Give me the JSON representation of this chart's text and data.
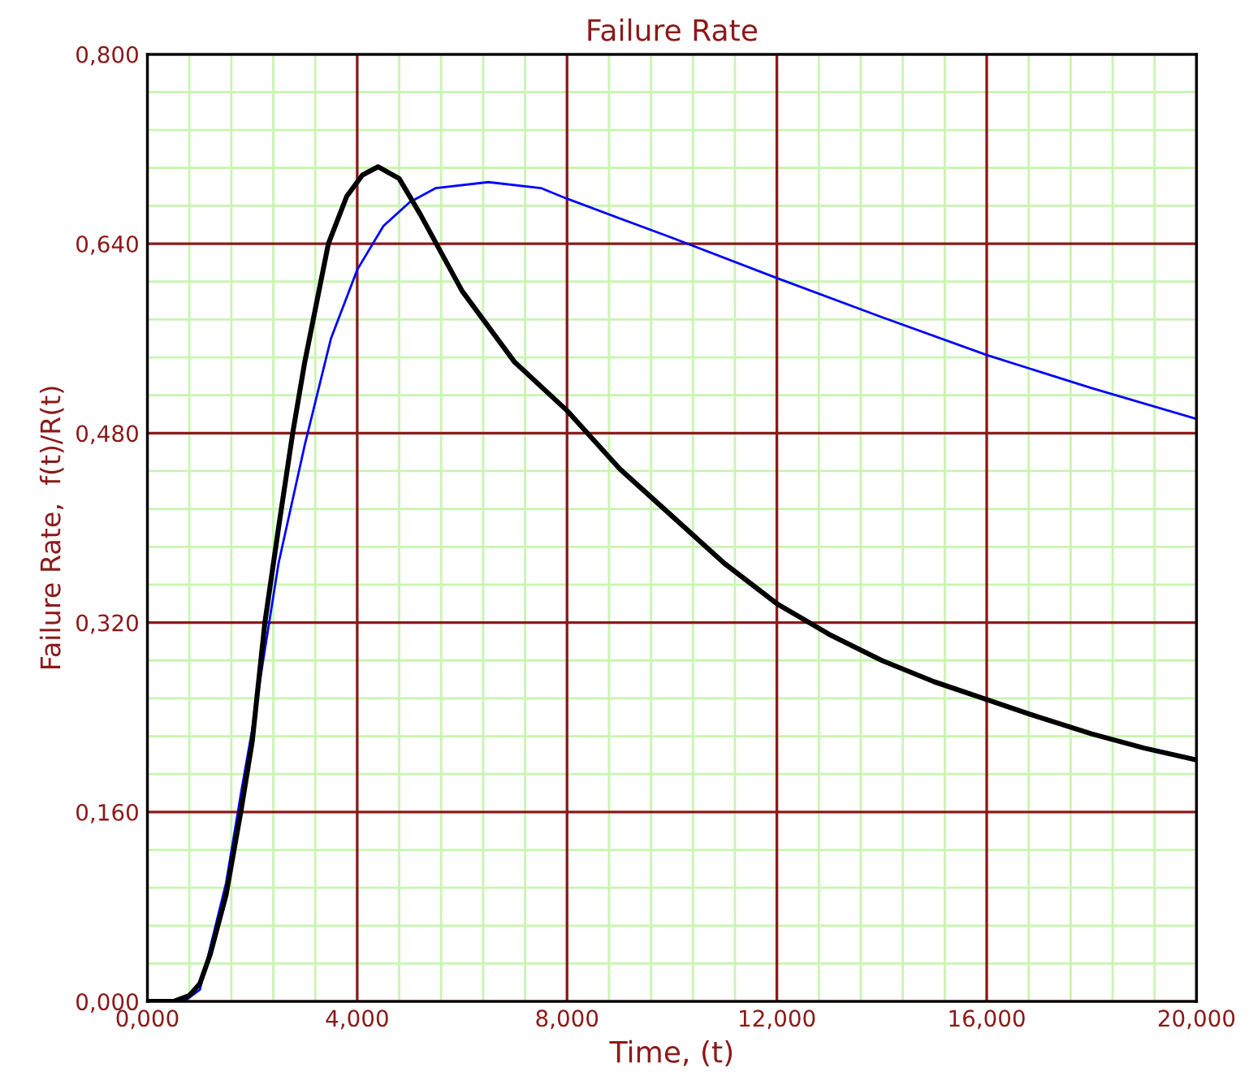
{
  "chart_data": {
    "type": "line",
    "title": "Failure Rate",
    "xlabel": "Time, (t)",
    "ylabel": "Failure Rate,  f(t)/R(t)",
    "xlim": [
      0,
      20
    ],
    "ylim": [
      0,
      0.8
    ],
    "xticks": [
      {
        "value": 0,
        "label": "0,000"
      },
      {
        "value": 0.8,
        "label": null
      },
      {
        "value": 1.6,
        "label": null
      },
      {
        "value": 2.4,
        "label": null
      },
      {
        "value": 3.2,
        "label": null
      },
      {
        "value": 4,
        "label": "4,000"
      },
      {
        "value": 4.8,
        "label": null
      },
      {
        "value": 5.6,
        "label": null
      },
      {
        "value": 6.4,
        "label": null
      },
      {
        "value": 7.2,
        "label": null
      },
      {
        "value": 8,
        "label": "8,000"
      },
      {
        "value": 8.8,
        "label": null
      },
      {
        "value": 9.6,
        "label": null
      },
      {
        "value": 10.4,
        "label": null
      },
      {
        "value": 11.2,
        "label": null
      },
      {
        "value": 12,
        "label": "12,000"
      },
      {
        "value": 12.8,
        "label": null
      },
      {
        "value": 13.6,
        "label": null
      },
      {
        "value": 14.4,
        "label": null
      },
      {
        "value": 15.2,
        "label": null
      },
      {
        "value": 16,
        "label": "16,000"
      },
      {
        "value": 16.8,
        "label": null
      },
      {
        "value": 17.6,
        "label": null
      },
      {
        "value": 18.4,
        "label": null
      },
      {
        "value": 19.2,
        "label": null
      },
      {
        "value": 20,
        "label": "20,000"
      }
    ],
    "yticks": [
      {
        "value": 0,
        "label": "0,000"
      },
      {
        "value": 0.032,
        "label": null
      },
      {
        "value": 0.064,
        "label": null
      },
      {
        "value": 0.096,
        "label": null
      },
      {
        "value": 0.128,
        "label": null
      },
      {
        "value": 0.16,
        "label": "0,160"
      },
      {
        "value": 0.192,
        "label": null
      },
      {
        "value": 0.224,
        "label": null
      },
      {
        "value": 0.256,
        "label": null
      },
      {
        "value": 0.288,
        "label": null
      },
      {
        "value": 0.32,
        "label": "0,320"
      },
      {
        "value": 0.352,
        "label": null
      },
      {
        "value": 0.384,
        "label": null
      },
      {
        "value": 0.416,
        "label": null
      },
      {
        "value": 0.448,
        "label": null
      },
      {
        "value": 0.48,
        "label": "0,480"
      },
      {
        "value": 0.512,
        "label": null
      },
      {
        "value": 0.544,
        "label": null
      },
      {
        "value": 0.576,
        "label": null
      },
      {
        "value": 0.608,
        "label": null
      },
      {
        "value": 0.64,
        "label": "0,640"
      },
      {
        "value": 0.672,
        "label": null
      },
      {
        "value": 0.704,
        "label": null
      },
      {
        "value": 0.736,
        "label": null
      },
      {
        "value": 0.768,
        "label": null
      },
      {
        "value": 0.8,
        "label": "0,800"
      }
    ],
    "grid": true,
    "marker": "none",
    "line_style": "solid",
    "series": [
      {
        "color": "#0000ff",
        "x": [
          0,
          0.7,
          1,
          1.5,
          1.8,
          2,
          2.5,
          3,
          3.5,
          4,
          4.5,
          5,
          5.5,
          6.5,
          7.5,
          8,
          10,
          12,
          14,
          16,
          18,
          20
        ],
        "values": [
          0,
          0,
          0.01,
          0.1,
          0.18,
          0.23,
          0.37,
          0.47,
          0.56,
          0.618,
          0.655,
          0.675,
          0.687,
          0.692,
          0.687,
          0.678,
          0.645,
          0.611,
          0.578,
          0.546,
          0.518,
          0.492
        ]
      },
      {
        "color": "#000000",
        "x": [
          0,
          0.5,
          0.8,
          1,
          1.2,
          1.5,
          1.78,
          2,
          2.24,
          2.5,
          2.77,
          3,
          3.45,
          3.8,
          4.1,
          4.4,
          4.8,
          5.2,
          6,
          7,
          8,
          9,
          10,
          11,
          12,
          13,
          14,
          15,
          16,
          17,
          18,
          19,
          20
        ],
        "values": [
          0,
          0,
          0.005,
          0.015,
          0.04,
          0.09,
          0.16,
          0.22,
          0.32,
          0.4,
          0.48,
          0.54,
          0.64,
          0.68,
          0.698,
          0.705,
          0.695,
          0.665,
          0.6,
          0.54,
          0.499,
          0.45,
          0.41,
          0.37,
          0.336,
          0.31,
          0.288,
          0.27,
          0.255,
          0.24,
          0.226,
          0.214,
          0.204
        ]
      }
    ]
  }
}
